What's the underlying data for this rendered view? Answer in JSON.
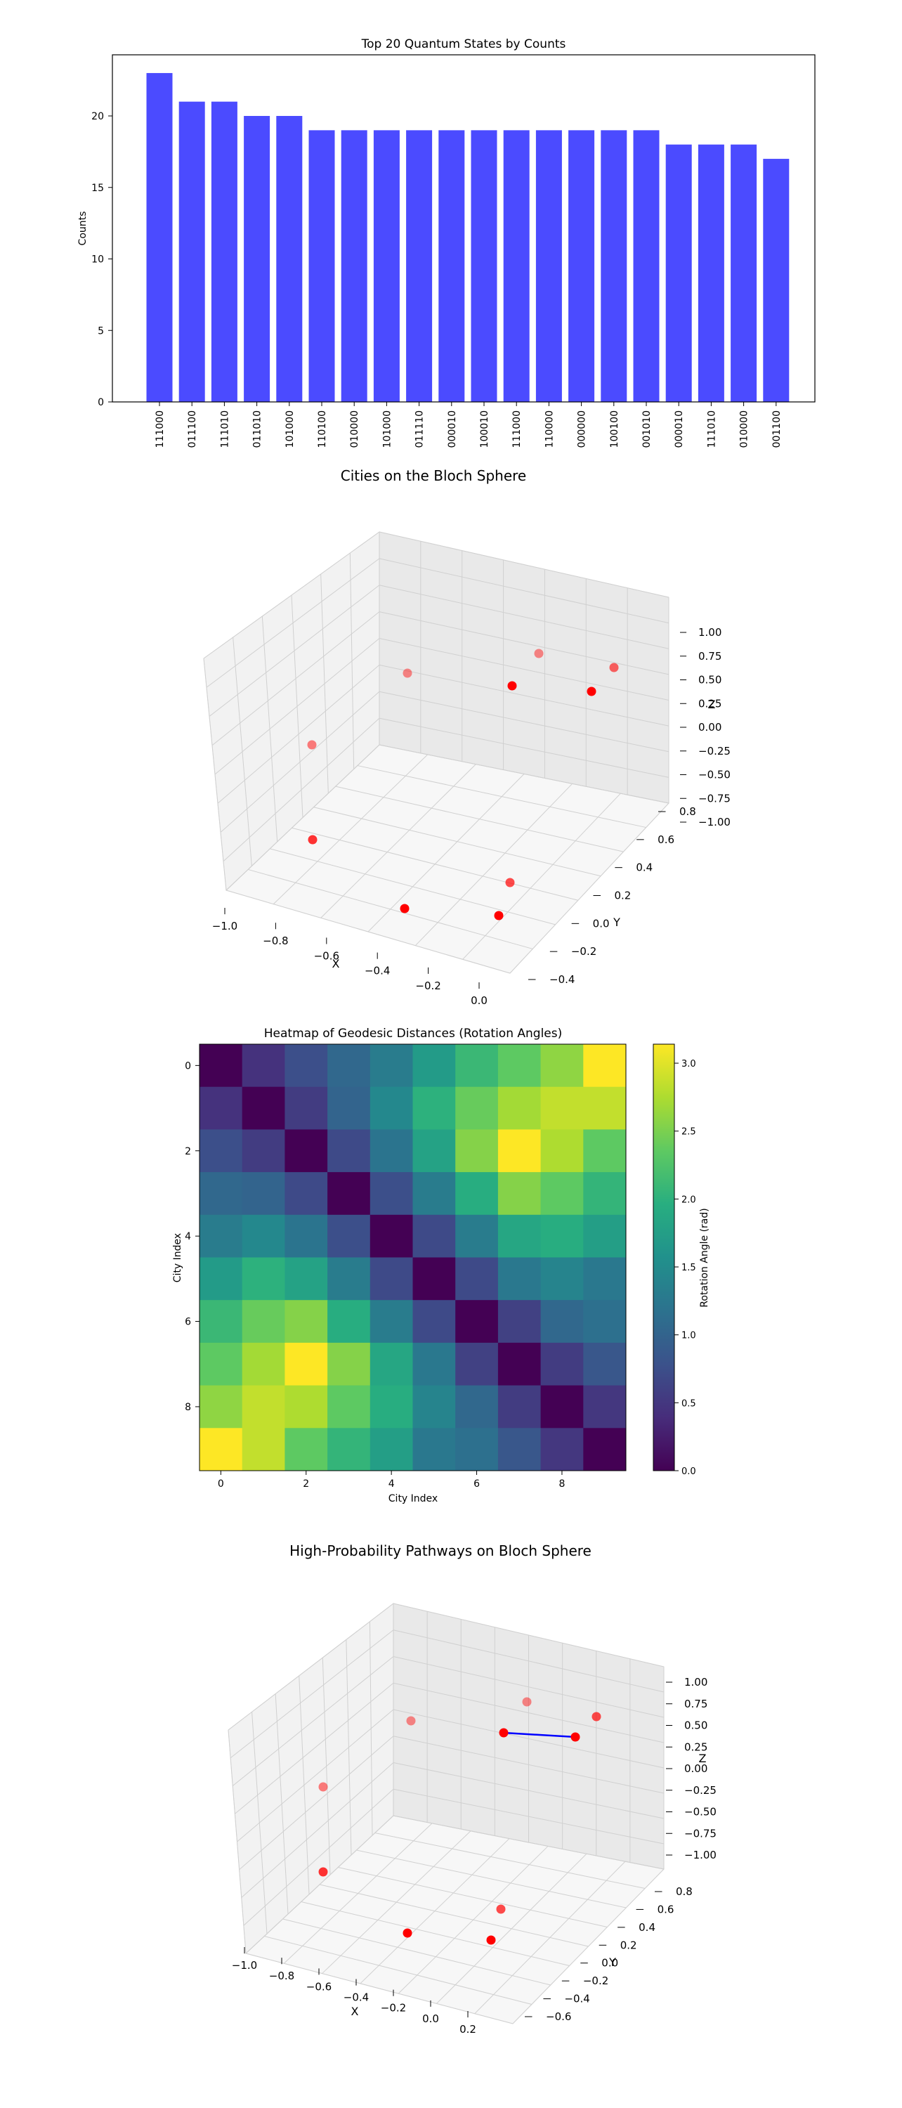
{
  "chart_data": [
    {
      "type": "bar",
      "title": "Top 20 Quantum States by Counts",
      "xlabel": "",
      "ylabel": "Counts",
      "ylim": [
        0,
        25
      ],
      "yticks": [
        "0",
        "5",
        "10",
        "15",
        "20"
      ],
      "categories": [
        "111000",
        "011100",
        "111010",
        "011010",
        "101000",
        "110100",
        "010000",
        "101000",
        "011110",
        "000010",
        "100010",
        "111000",
        "110000",
        "000000",
        "100100",
        "001010",
        "000010",
        "111010",
        "010000",
        "001100"
      ],
      "values": [
        23,
        21,
        21,
        20,
        20,
        19,
        19,
        19,
        19,
        19,
        19,
        19,
        19,
        19,
        19,
        19,
        18,
        18,
        18,
        17
      ],
      "bar_color": "#4b4bff",
      "grid": false
    },
    {
      "type": "scatter",
      "title": "Cities on the Bloch Sphere",
      "xlabel": "X",
      "ylabel": "Y",
      "zlabel": "Z",
      "x_ticks": [
        "−1.0",
        "−0.8",
        "−0.6",
        "−0.4",
        "−0.2",
        "0.0"
      ],
      "y_ticks": [
        "−0.4",
        "−0.2",
        "0.0",
        "0.2",
        "0.4",
        "0.6",
        "0.8"
      ],
      "z_ticks": [
        "1.00",
        "0.75",
        "0.50",
        "0.25",
        "0.00",
        "−0.25",
        "−0.50",
        "−0.75",
        "−1.00"
      ],
      "point_color": "#ff0000",
      "grid": true
    },
    {
      "type": "heatmap",
      "title": "Heatmap of Geodesic Distances (Rotation Angles)",
      "xlabel": "City Index",
      "ylabel": "City Index",
      "x_ticks": [
        "0",
        "2",
        "4",
        "6",
        "8"
      ],
      "y_ticks": [
        "0",
        "2",
        "4",
        "6",
        "8"
      ],
      "colorbar_label": "Rotation Angle (rad)",
      "colorbar_ticks": [
        "0.0",
        "0.5",
        "1.0",
        "1.5",
        "2.0",
        "2.5",
        "3.0"
      ],
      "vmin": 0,
      "vmax": 3.14,
      "values": [
        [
          0.0,
          0.45,
          0.75,
          1.05,
          1.3,
          1.7,
          2.1,
          2.35,
          2.6,
          3.14
        ],
        [
          0.45,
          0.0,
          0.55,
          1.0,
          1.45,
          2.0,
          2.4,
          2.7,
          2.85,
          2.85
        ],
        [
          0.75,
          0.55,
          0.0,
          0.7,
          1.2,
          1.8,
          2.55,
          3.14,
          2.75,
          2.35
        ],
        [
          1.05,
          1.0,
          0.7,
          0.0,
          0.75,
          1.3,
          1.95,
          2.55,
          2.35,
          2.05
        ],
        [
          1.3,
          1.45,
          1.2,
          0.75,
          0.0,
          0.7,
          1.3,
          1.85,
          1.95,
          1.75
        ],
        [
          1.7,
          2.0,
          1.8,
          1.3,
          0.7,
          0.0,
          0.7,
          1.25,
          1.4,
          1.25
        ],
        [
          2.1,
          2.4,
          2.55,
          1.95,
          1.3,
          0.7,
          0.0,
          0.6,
          1.05,
          1.15
        ],
        [
          2.35,
          2.7,
          3.14,
          2.55,
          1.85,
          1.25,
          0.6,
          0.0,
          0.55,
          0.85
        ],
        [
          2.6,
          2.85,
          2.75,
          2.35,
          1.95,
          1.4,
          1.05,
          0.55,
          0.0,
          0.5
        ],
        [
          3.14,
          2.85,
          2.35,
          2.05,
          1.75,
          1.25,
          1.15,
          0.85,
          0.5,
          0.0
        ]
      ]
    },
    {
      "type": "scatter",
      "title": "High-Probability Pathways on Bloch Sphere",
      "xlabel": "X",
      "ylabel": "Y",
      "zlabel": "Z",
      "x_ticks": [
        "−1.0",
        "−0.8",
        "−0.6",
        "−0.4",
        "−0.2",
        "0.0",
        "0.2"
      ],
      "y_ticks": [
        "−0.6",
        "−0.4",
        "−0.2",
        "0.0",
        "0.2",
        "0.4",
        "0.6",
        "0.8"
      ],
      "z_ticks": [
        "1.00",
        "0.75",
        "0.50",
        "0.25",
        "0.00",
        "−0.25",
        "−0.50",
        "−0.75",
        "−1.00"
      ],
      "point_color": "#ff0000",
      "path_color": "#0000ff",
      "grid": true
    }
  ]
}
